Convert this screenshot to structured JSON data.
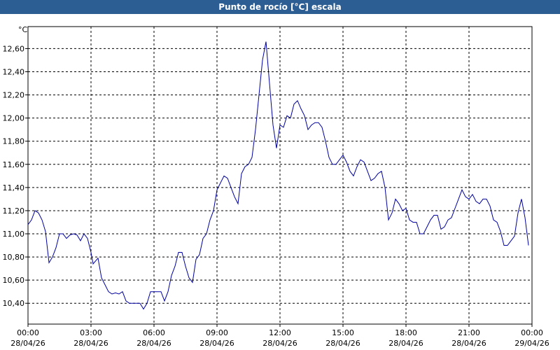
{
  "chart_data": {
    "type": "line",
    "title": "Punto de rocío [°C] escala",
    "y_unit": "°C",
    "x": [
      0,
      10,
      20,
      30,
      40,
      50,
      60,
      70,
      80,
      90,
      100,
      110,
      120,
      130,
      140,
      150,
      160,
      170,
      180,
      186,
      200,
      210,
      220,
      230,
      240,
      250,
      260,
      270,
      280,
      290,
      310,
      320,
      330,
      340,
      350,
      360,
      380,
      390,
      400,
      410,
      420,
      430,
      440,
      450,
      460,
      470,
      480,
      490,
      500,
      510,
      520,
      530,
      540,
      550,
      560,
      570,
      580,
      590,
      600,
      610,
      620,
      630,
      640,
      650,
      660,
      670,
      680,
      690,
      700,
      710,
      720,
      730,
      740,
      750,
      760,
      770,
      780,
      790,
      800,
      810,
      820,
      830,
      840,
      850,
      860,
      870,
      880,
      890,
      900,
      910,
      920,
      930,
      940,
      950,
      960,
      970,
      980,
      990,
      1000,
      1010,
      1020,
      1030,
      1040,
      1050,
      1060,
      1070,
      1080,
      1090,
      1100,
      1110,
      1120,
      1130,
      1140,
      1150,
      1160,
      1170,
      1180,
      1190,
      1200,
      1210,
      1220,
      1230,
      1240,
      1250,
      1260,
      1270,
      1280,
      1290,
      1300,
      1310,
      1320,
      1330,
      1340,
      1350,
      1360,
      1370,
      1380,
      1390,
      1400,
      1410,
      1420,
      1430
    ],
    "series": [
      {
        "name": "Punto de rocío",
        "color": "#0000a0",
        "values": [
          11.08,
          11.12,
          11.2,
          11.18,
          11.12,
          11.02,
          10.75,
          10.8,
          10.88,
          11.0,
          11.0,
          10.96,
          10.99,
          11.0,
          10.99,
          10.94,
          11.0,
          10.96,
          10.84,
          10.74,
          10.79,
          10.62,
          10.56,
          10.5,
          10.48,
          10.49,
          10.48,
          10.5,
          10.42,
          10.4,
          10.4,
          10.4,
          10.35,
          10.4,
          10.5,
          10.5,
          10.5,
          10.42,
          10.5,
          10.64,
          10.72,
          10.84,
          10.84,
          10.72,
          10.62,
          10.58,
          10.78,
          10.82,
          10.96,
          11.0,
          11.12,
          11.2,
          11.38,
          11.44,
          11.5,
          11.48,
          11.4,
          11.32,
          11.26,
          11.52,
          11.58,
          11.6,
          11.66,
          11.9,
          12.2,
          12.5,
          12.66,
          12.3,
          11.94,
          11.74,
          11.94,
          11.92,
          12.02,
          12.0,
          12.12,
          12.15,
          12.08,
          12.02,
          11.9,
          11.94,
          11.96,
          11.96,
          11.92,
          11.8,
          11.66,
          11.6,
          11.6,
          11.64,
          11.68,
          11.62,
          11.54,
          11.5,
          11.58,
          11.64,
          11.62,
          11.54,
          11.46,
          11.48,
          11.52,
          11.54,
          11.4,
          11.12,
          11.18,
          11.3,
          11.26,
          11.2,
          11.22,
          11.12,
          11.1,
          11.1,
          11.0,
          11.0,
          11.06,
          11.12,
          11.16,
          11.16,
          11.04,
          11.06,
          11.12,
          11.14,
          11.22,
          11.3,
          11.38,
          11.32,
          11.3,
          11.34,
          11.28,
          11.26,
          11.3,
          11.3,
          11.24,
          11.12,
          11.1,
          11.02,
          10.9,
          10.9,
          10.94,
          10.98,
          11.18,
          11.3,
          11.14,
          10.9
        ]
      }
    ],
    "xlim": [
      0,
      1440
    ],
    "xticks": [
      {
        "value": 0,
        "label": [
          "00:00",
          "28/04/26"
        ]
      },
      {
        "value": 180,
        "label": [
          "03:00",
          "28/04/26"
        ]
      },
      {
        "value": 360,
        "label": [
          "06:00",
          "28/04/26"
        ]
      },
      {
        "value": 540,
        "label": [
          "09:00",
          "28/04/26"
        ]
      },
      {
        "value": 720,
        "label": [
          "12:00",
          "28/04/26"
        ]
      },
      {
        "value": 900,
        "label": [
          "15:00",
          "28/04/26"
        ]
      },
      {
        "value": 1080,
        "label": [
          "18:00",
          "28/04/26"
        ]
      },
      {
        "value": 1260,
        "label": [
          "21:00",
          "28/04/26"
        ]
      },
      {
        "value": 1440,
        "label": [
          "00:00",
          "29/04/26"
        ]
      }
    ],
    "ylim": [
      10.22,
      12.79
    ],
    "yticks": [
      {
        "value": 10.4,
        "label": "10,40"
      },
      {
        "value": 10.6,
        "label": "10,60"
      },
      {
        "value": 10.8,
        "label": "10,80"
      },
      {
        "value": 11.0,
        "label": "11,00"
      },
      {
        "value": 11.2,
        "label": "11,20"
      },
      {
        "value": 11.4,
        "label": "11,40"
      },
      {
        "value": 11.6,
        "label": "11,60"
      },
      {
        "value": 11.8,
        "label": "11,80"
      },
      {
        "value": 12.0,
        "label": "12,00"
      },
      {
        "value": 12.2,
        "label": "12,20"
      },
      {
        "value": 12.4,
        "label": "12,40"
      },
      {
        "value": 12.6,
        "label": "12,60"
      }
    ],
    "grid": true
  }
}
